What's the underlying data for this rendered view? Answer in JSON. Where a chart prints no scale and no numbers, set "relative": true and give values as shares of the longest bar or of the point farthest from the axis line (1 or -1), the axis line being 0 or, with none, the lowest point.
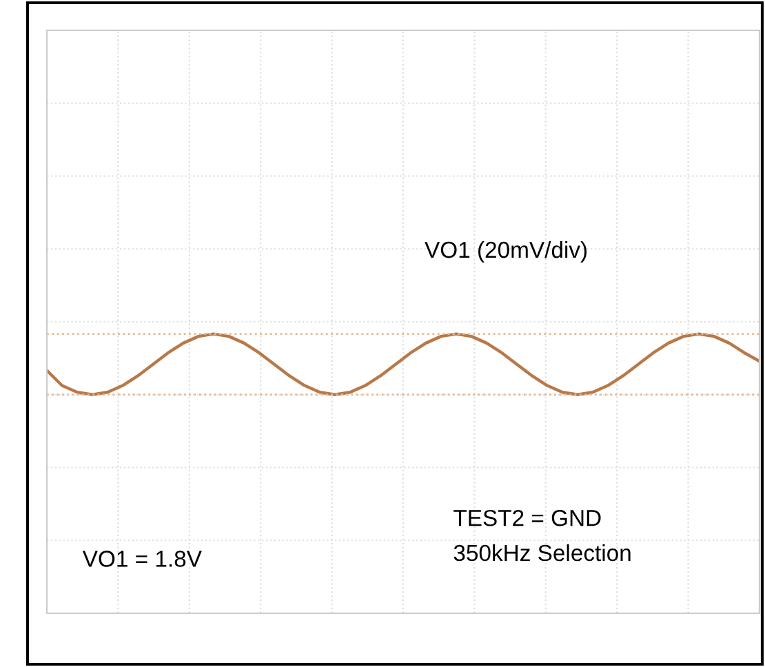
{
  "chart_data": {
    "type": "line",
    "relative": true,
    "categories": [
      null,
      null,
      null,
      null,
      null,
      null,
      null,
      null,
      null,
      null,
      null,
      null,
      null,
      null,
      null,
      null,
      null,
      null,
      null,
      null,
      null,
      null,
      null,
      null,
      null,
      null,
      null,
      null,
      null,
      null,
      null,
      null,
      null,
      null,
      null,
      null,
      null,
      null,
      null,
      null,
      null,
      null,
      null,
      null,
      null,
      null,
      null,
      null
    ],
    "series": [
      {
        "color": "#b8794a",
        "values": [
          0.4,
          0.15,
          0.04,
          0,
          0.04,
          0.15,
          0.31,
          0.5,
          0.69,
          0.85,
          0.96,
          1,
          0.96,
          0.85,
          0.69,
          0.5,
          0.31,
          0.15,
          0.04,
          0,
          0.04,
          0.15,
          0.31,
          0.5,
          0.69,
          0.85,
          0.96,
          1,
          0.96,
          0.85,
          0.69,
          0.5,
          0.31,
          0.15,
          0.04,
          0,
          0.04,
          0.15,
          0.31,
          0.5,
          0.69,
          0.85,
          0.96,
          1,
          0.96,
          0.85,
          0.69,
          0.55
        ]
      }
    ],
    "ref_lines": [
      {
        "axis": "y",
        "value": 1,
        "color": "#e8b890",
        "line_style": "dotted"
      },
      {
        "axis": "y",
        "value": 0,
        "color": "#e8b890",
        "line_style": "dotted"
      }
    ],
    "grid": true,
    "annotations": [
      "VO1 (20mV/div)",
      "TEST2 = GND",
      "350kHz Selection",
      "VO1 = 1.8V"
    ]
  }
}
